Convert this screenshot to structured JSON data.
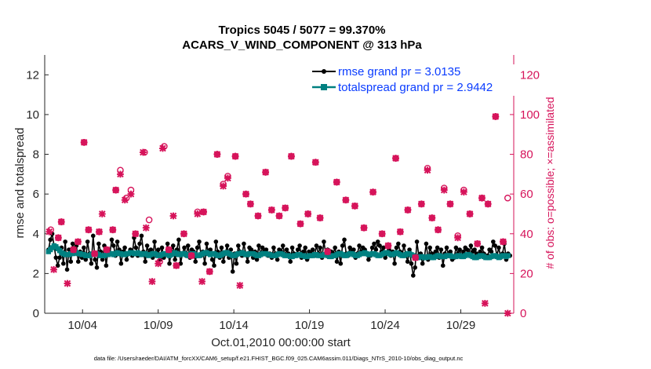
{
  "chart_data": {
    "type": "line",
    "title_line1": "Tropics 5045 / 5077 = 99.370%",
    "title_line2": "ACARS_V_WIND_COMPONENT @ 313 hPa",
    "xlabel": "Oct.01,2010 00:00:00 start",
    "ylabel_left": "rmse and totalspread",
    "ylabel_right": "# of obs: o=possible; ×=assimilated",
    "footer": "data file: /Users/raeder/DAI/ATM_forcXX/CAM6_setup/f.e21.FHIST_BGC.f09_025.CAM6assim.011/Diags_NTrS_2010-10/obs_diag_output.nc",
    "xlim": [
      1.5,
      32.5
    ],
    "ylim_left": [
      0,
      13
    ],
    "ylim_right": [
      0,
      130
    ],
    "x_ticks": [
      4,
      9,
      14,
      19,
      24,
      29
    ],
    "x_tick_labels": [
      "10/04",
      "10/09",
      "10/14",
      "10/19",
      "10/24",
      "10/29"
    ],
    "y_left_ticks": [
      0,
      2,
      4,
      6,
      8,
      10,
      12
    ],
    "y_right_ticks": [
      0,
      20,
      40,
      60,
      80,
      100,
      120
    ],
    "colors": {
      "rmse": "#000000",
      "spread": "#008080",
      "obs": "#d6135a",
      "legend_text": "#0a3cff"
    },
    "series": [
      {
        "name": "rmse grand pr = 3.0135",
        "values": [
          3.2,
          3.7,
          4.0,
          3.4,
          2.8,
          2.4,
          2.8,
          3.3,
          2.5,
          3.6,
          2.2,
          3.2,
          2.6,
          3.5,
          3.0,
          3.4,
          2.6,
          3.1,
          2.8,
          3.3,
          2.7,
          3.6,
          3.0,
          2.5,
          3.9,
          2.7,
          2.3,
          3.5,
          3.1,
          2.7,
          3.4,
          2.4,
          3.2,
          3.0,
          3.7,
          3.4,
          2.9,
          3.6,
          3.2,
          2.5,
          3.1,
          3.3,
          2.7,
          3.0,
          3.2,
          2.9,
          3.8,
          3.3,
          2.9,
          3.5,
          3.9,
          3.1,
          2.6,
          3.4,
          3.0,
          3.2,
          2.8,
          3.6,
          2.9,
          3.2,
          2.7,
          3.3,
          2.8,
          3.0,
          3.5,
          2.5,
          3.1,
          3.4,
          2.7,
          3.2,
          3.7,
          2.5,
          3.0,
          3.3,
          2.9,
          3.4,
          2.8,
          3.2,
          3.1,
          2.6,
          3.3,
          3.6,
          2.9,
          3.1,
          2.5,
          3.5,
          3.0,
          3.2,
          2.7,
          2.4,
          3.6,
          3.1,
          2.8,
          3.3,
          2.6,
          3.0,
          3.4,
          2.8,
          3.2,
          2.1,
          3.0,
          2.5,
          3.4,
          3.1,
          2.9,
          3.5,
          3.0,
          2.6,
          3.3,
          3.2,
          2.8,
          3.1,
          2.7,
          3.4,
          3.0,
          3.3,
          3.1,
          3.2,
          2.9,
          3.0,
          2.8,
          3.3,
          3.0,
          2.7,
          3.2,
          3.1,
          3.4,
          2.9,
          3.2,
          3.0,
          2.6,
          3.3,
          3.0,
          2.9,
          3.2,
          3.4,
          2.8,
          3.1,
          3.3,
          2.7,
          3.1,
          3.0,
          3.2,
          2.9,
          3.4,
          3.0,
          3.3,
          2.8,
          3.6,
          3.0,
          3.2,
          2.9,
          3.1,
          3.0,
          3.3,
          2.6,
          3.1,
          2.5,
          3.4,
          3.7,
          3.0,
          2.9,
          3.3,
          3.1,
          3.2,
          2.8,
          3.0,
          3.4,
          3.1,
          3.3,
          3.2,
          3.0,
          2.7,
          2.9,
          3.3,
          3.5,
          3.2,
          3.6,
          3.4,
          3.1,
          3.3,
          2.8,
          3.0,
          3.2,
          2.9,
          3.1,
          2.5,
          3.3,
          3.5,
          3.1,
          2.9,
          3.4,
          3.0,
          2.6,
          3.2,
          2.5,
          1.9,
          2.3,
          3.6,
          2.9,
          3.0,
          2.5,
          2.8,
          3.5,
          2.7,
          3.3,
          3.0,
          2.9,
          3.1,
          3.3,
          2.8,
          3.2,
          2.4,
          3.0,
          3.3,
          2.9,
          3.1,
          2.7,
          2.8,
          3.3,
          3.0,
          3.2,
          2.9,
          3.1,
          3.3,
          3.2,
          3.0,
          3.4,
          3.1,
          3.2,
          3.0,
          2.9,
          3.1,
          3.3,
          3.0,
          2.8,
          2.9,
          3.2,
          3.1,
          3.6,
          3.4,
          2.9,
          3.3,
          2.8,
          3.0,
          3.5,
          2.7,
          3.0,
          2.9
        ]
      },
      {
        "name": "totalspread grand pr = 2.9442",
        "values": [
          3.1,
          3.2,
          3.3,
          3.4,
          3.35,
          3.25,
          3.15,
          3.05,
          3.0,
          2.95,
          2.95,
          2.95,
          3.0,
          3.0,
          3.05,
          3.05,
          3.0,
          3.0,
          2.95,
          2.95,
          2.9,
          2.9,
          2.9,
          2.95,
          3.0,
          3.0,
          3.0,
          2.95,
          2.9,
          2.9,
          2.9,
          2.95,
          2.95,
          3.0,
          3.0,
          2.95,
          3.0,
          3.05,
          3.0,
          3.0,
          2.95,
          2.95,
          3.0,
          3.0,
          3.05,
          3.05,
          3.0,
          3.0,
          3.05,
          3.0,
          2.95,
          3.0,
          3.0,
          2.95,
          2.9,
          2.95,
          3.0,
          3.0,
          2.95,
          2.9,
          2.9,
          2.95,
          3.0,
          3.0,
          2.95,
          2.9,
          2.95,
          3.0,
          3.05,
          3.0,
          2.95,
          2.95,
          3.0,
          3.0,
          2.95,
          2.9,
          2.95,
          3.0,
          3.0,
          2.95,
          2.9,
          2.9,
          2.95,
          3.0,
          3.05,
          3.05,
          3.0,
          2.95,
          3.0,
          3.0,
          2.95,
          2.9,
          2.9,
          2.95,
          3.0,
          3.05,
          3.05,
          3.0,
          2.95,
          2.9,
          2.9,
          2.95,
          3.0,
          3.0,
          3.05,
          3.0,
          2.95,
          2.95,
          3.0,
          3.0,
          3.0,
          2.95,
          2.9,
          2.9,
          2.95,
          3.0,
          3.0,
          3.0,
          2.95,
          2.95,
          2.9,
          2.9,
          2.9,
          2.95,
          3.0,
          3.0,
          2.95,
          2.9,
          2.9,
          2.9,
          2.85,
          2.85,
          2.9,
          2.9,
          2.95,
          2.95,
          2.9,
          2.9,
          2.85,
          2.85,
          2.9,
          2.9,
          2.9,
          2.95,
          2.95,
          2.9,
          2.9,
          2.9,
          2.95,
          2.95,
          2.9,
          2.85,
          2.85,
          2.9,
          2.9,
          2.95,
          3.0,
          3.0,
          2.95,
          2.9,
          2.9,
          2.95,
          3.0,
          3.0,
          2.95,
          2.9,
          2.9,
          2.95,
          3.0,
          3.0,
          3.05,
          3.0,
          2.95,
          2.95,
          3.0,
          3.0,
          2.95,
          2.9,
          2.9,
          2.95,
          3.0,
          3.05,
          3.05,
          3.0,
          2.95,
          2.95,
          3.0,
          3.05,
          3.0,
          2.95,
          2.9,
          2.9,
          2.95,
          3.0,
          3.0,
          2.95,
          2.9,
          2.85,
          2.8,
          2.8,
          2.85,
          2.85,
          2.8,
          2.8,
          2.85,
          2.85,
          2.8,
          2.8,
          2.85,
          2.9,
          2.9,
          2.85,
          2.85,
          2.85,
          2.9,
          2.9,
          2.9,
          2.85,
          2.85,
          2.85,
          2.9,
          2.9,
          2.85,
          2.85,
          2.9,
          2.95,
          2.95,
          2.9,
          2.85,
          2.8,
          2.8,
          2.85,
          2.9,
          2.9,
          2.85,
          2.8,
          2.8,
          2.8,
          2.85,
          2.9,
          2.9,
          2.85,
          2.8,
          2.85,
          2.9,
          2.9,
          2.85,
          2.9
        ]
      },
      {
        "name": "obs_possible",
        "axis": "right",
        "points": [
          [
            1.9,
            42
          ],
          [
            2.4,
            38
          ],
          [
            2.6,
            46
          ],
          [
            3.4,
            32
          ],
          [
            3.7,
            36
          ],
          [
            4.1,
            86
          ],
          [
            4.4,
            42
          ],
          [
            4.8,
            30
          ],
          [
            5.1,
            41
          ],
          [
            5.6,
            32
          ],
          [
            6.0,
            42
          ],
          [
            6.2,
            62
          ],
          [
            6.5,
            72
          ],
          [
            6.9,
            58
          ],
          [
            7.2,
            62
          ],
          [
            7.5,
            40
          ],
          [
            8.1,
            81
          ],
          [
            8.4,
            47
          ],
          [
            9.1,
            26
          ],
          [
            9.4,
            84
          ],
          [
            9.7,
            32
          ],
          [
            10.2,
            24
          ],
          [
            10.7,
            40
          ],
          [
            11.2,
            29
          ],
          [
            11.6,
            51
          ],
          [
            12.0,
            51
          ],
          [
            12.4,
            21
          ],
          [
            12.9,
            80
          ],
          [
            13.3,
            65
          ],
          [
            13.6,
            69
          ],
          [
            14.1,
            79
          ],
          [
            14.8,
            60
          ],
          [
            15.1,
            55
          ],
          [
            15.6,
            49
          ],
          [
            16.1,
            71
          ],
          [
            16.5,
            52
          ],
          [
            17.0,
            49
          ],
          [
            17.4,
            53
          ],
          [
            17.8,
            79
          ],
          [
            18.4,
            45
          ],
          [
            18.9,
            50
          ],
          [
            19.4,
            76
          ],
          [
            19.7,
            48
          ],
          [
            20.2,
            31
          ],
          [
            20.8,
            66
          ],
          [
            21.4,
            57
          ],
          [
            22.0,
            54
          ],
          [
            22.6,
            43
          ],
          [
            23.2,
            61
          ],
          [
            23.8,
            40
          ],
          [
            24.2,
            34
          ],
          [
            24.7,
            78
          ],
          [
            25.0,
            41
          ],
          [
            25.5,
            52
          ],
          [
            26.0,
            28
          ],
          [
            26.4,
            55
          ],
          [
            26.8,
            73
          ],
          [
            27.1,
            48
          ],
          [
            27.5,
            42
          ],
          [
            27.9,
            63
          ],
          [
            28.3,
            55
          ],
          [
            28.8,
            39
          ],
          [
            29.2,
            62
          ],
          [
            29.6,
            50
          ],
          [
            30.1,
            35
          ],
          [
            30.4,
            58
          ],
          [
            30.8,
            55
          ],
          [
            31.3,
            99
          ],
          [
            31.8,
            36
          ],
          [
            32.1,
            58
          ]
        ]
      },
      {
        "name": "obs_assimilated",
        "axis": "right",
        "points": [
          [
            1.8,
            41
          ],
          [
            2.1,
            22
          ],
          [
            2.4,
            38
          ],
          [
            2.6,
            46
          ],
          [
            3.0,
            15
          ],
          [
            3.4,
            32
          ],
          [
            3.7,
            36
          ],
          [
            4.1,
            86
          ],
          [
            4.4,
            42
          ],
          [
            4.8,
            30
          ],
          [
            5.1,
            41
          ],
          [
            5.3,
            50
          ],
          [
            5.6,
            32
          ],
          [
            6.0,
            42
          ],
          [
            6.2,
            62
          ],
          [
            6.5,
            70
          ],
          [
            6.8,
            57
          ],
          [
            7.2,
            60
          ],
          [
            7.5,
            40
          ],
          [
            8.0,
            81
          ],
          [
            8.2,
            43
          ],
          [
            8.6,
            16
          ],
          [
            9.0,
            25
          ],
          [
            9.3,
            83
          ],
          [
            9.7,
            32
          ],
          [
            10.0,
            49
          ],
          [
            10.2,
            24
          ],
          [
            10.7,
            40
          ],
          [
            11.2,
            29
          ],
          [
            11.6,
            50
          ],
          [
            11.9,
            16
          ],
          [
            12.0,
            51
          ],
          [
            12.4,
            21
          ],
          [
            12.9,
            80
          ],
          [
            13.3,
            64
          ],
          [
            13.6,
            68
          ],
          [
            14.1,
            79
          ],
          [
            14.4,
            14
          ],
          [
            14.8,
            60
          ],
          [
            15.1,
            55
          ],
          [
            15.6,
            49
          ],
          [
            16.1,
            71
          ],
          [
            16.5,
            52
          ],
          [
            17.0,
            49
          ],
          [
            17.4,
            53
          ],
          [
            17.8,
            79
          ],
          [
            18.4,
            45
          ],
          [
            18.9,
            50
          ],
          [
            19.4,
            76
          ],
          [
            19.7,
            48
          ],
          [
            20.2,
            31
          ],
          [
            20.8,
            66
          ],
          [
            21.4,
            57
          ],
          [
            22.0,
            54
          ],
          [
            22.6,
            43
          ],
          [
            23.2,
            61
          ],
          [
            23.8,
            40
          ],
          [
            24.2,
            34
          ],
          [
            24.7,
            78
          ],
          [
            25.0,
            41
          ],
          [
            25.5,
            52
          ],
          [
            26.0,
            28
          ],
          [
            26.4,
            55
          ],
          [
            26.8,
            72
          ],
          [
            27.1,
            48
          ],
          [
            27.5,
            42
          ],
          [
            27.9,
            62
          ],
          [
            28.3,
            55
          ],
          [
            28.8,
            38
          ],
          [
            29.2,
            61
          ],
          [
            29.6,
            50
          ],
          [
            30.1,
            35
          ],
          [
            30.4,
            58
          ],
          [
            30.6,
            5
          ],
          [
            30.8,
            55
          ],
          [
            31.3,
            99
          ],
          [
            31.8,
            36
          ],
          [
            32.1,
            0
          ]
        ]
      }
    ]
  }
}
